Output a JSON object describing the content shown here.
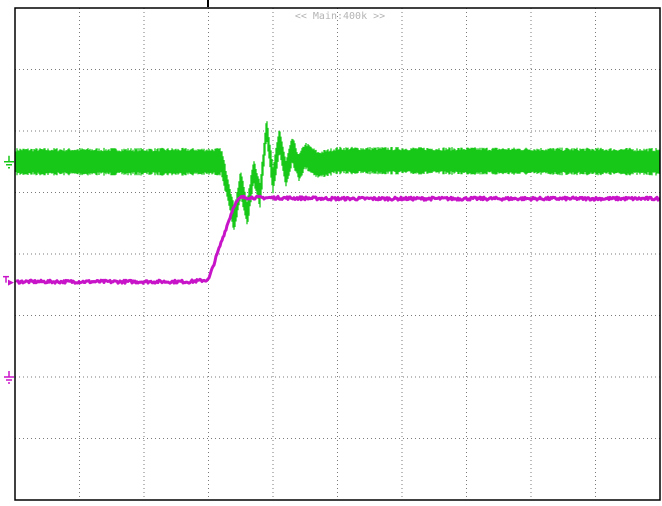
{
  "header": {
    "memory_label": "<< Main:400k >>"
  },
  "colors": {
    "ch1": "#18c818",
    "ch2": "#c814c8",
    "grid": "#7a7a7a",
    "frame": "#000000",
    "label": "#b4b4b4"
  },
  "chart_data": {
    "type": "line",
    "title": "",
    "xlabel": "",
    "ylabel": "",
    "grid": true,
    "xlim": [
      -5,
      5
    ],
    "ylim": [
      -4,
      4
    ],
    "x_divisions": 10,
    "y_divisions": 8,
    "trigger_position_div": -2,
    "series": [
      {
        "channel": 1,
        "color": "#18c818",
        "ground_level_div": 1.5,
        "ripple_pp_div": 0.45,
        "points": [
          [
            -5.0,
            1.5
          ],
          [
            -1.8,
            1.5
          ],
          [
            -1.7,
            1.05
          ],
          [
            -1.6,
            0.55
          ],
          [
            -1.5,
            1.15
          ],
          [
            -1.4,
            0.65
          ],
          [
            -1.3,
            1.35
          ],
          [
            -1.2,
            0.95
          ],
          [
            -1.1,
            2.05
          ],
          [
            -1.0,
            1.2
          ],
          [
            -0.9,
            1.85
          ],
          [
            -0.8,
            1.3
          ],
          [
            -0.7,
            1.7
          ],
          [
            -0.6,
            1.4
          ],
          [
            -0.5,
            1.6
          ],
          [
            -0.3,
            1.45
          ],
          [
            0.0,
            1.52
          ],
          [
            5.0,
            1.5
          ]
        ]
      },
      {
        "channel": 2,
        "color": "#c814c8",
        "ground_level_div": -2.0,
        "marker_level_div": -0.45,
        "points": [
          [
            -5.0,
            -0.45
          ],
          [
            -2.3,
            -0.45
          ],
          [
            -2.0,
            -0.42
          ],
          [
            -1.8,
            0.2
          ],
          [
            -1.6,
            0.8
          ],
          [
            -1.5,
            0.92
          ],
          [
            0.0,
            0.9
          ],
          [
            5.0,
            0.9
          ]
        ]
      }
    ]
  }
}
